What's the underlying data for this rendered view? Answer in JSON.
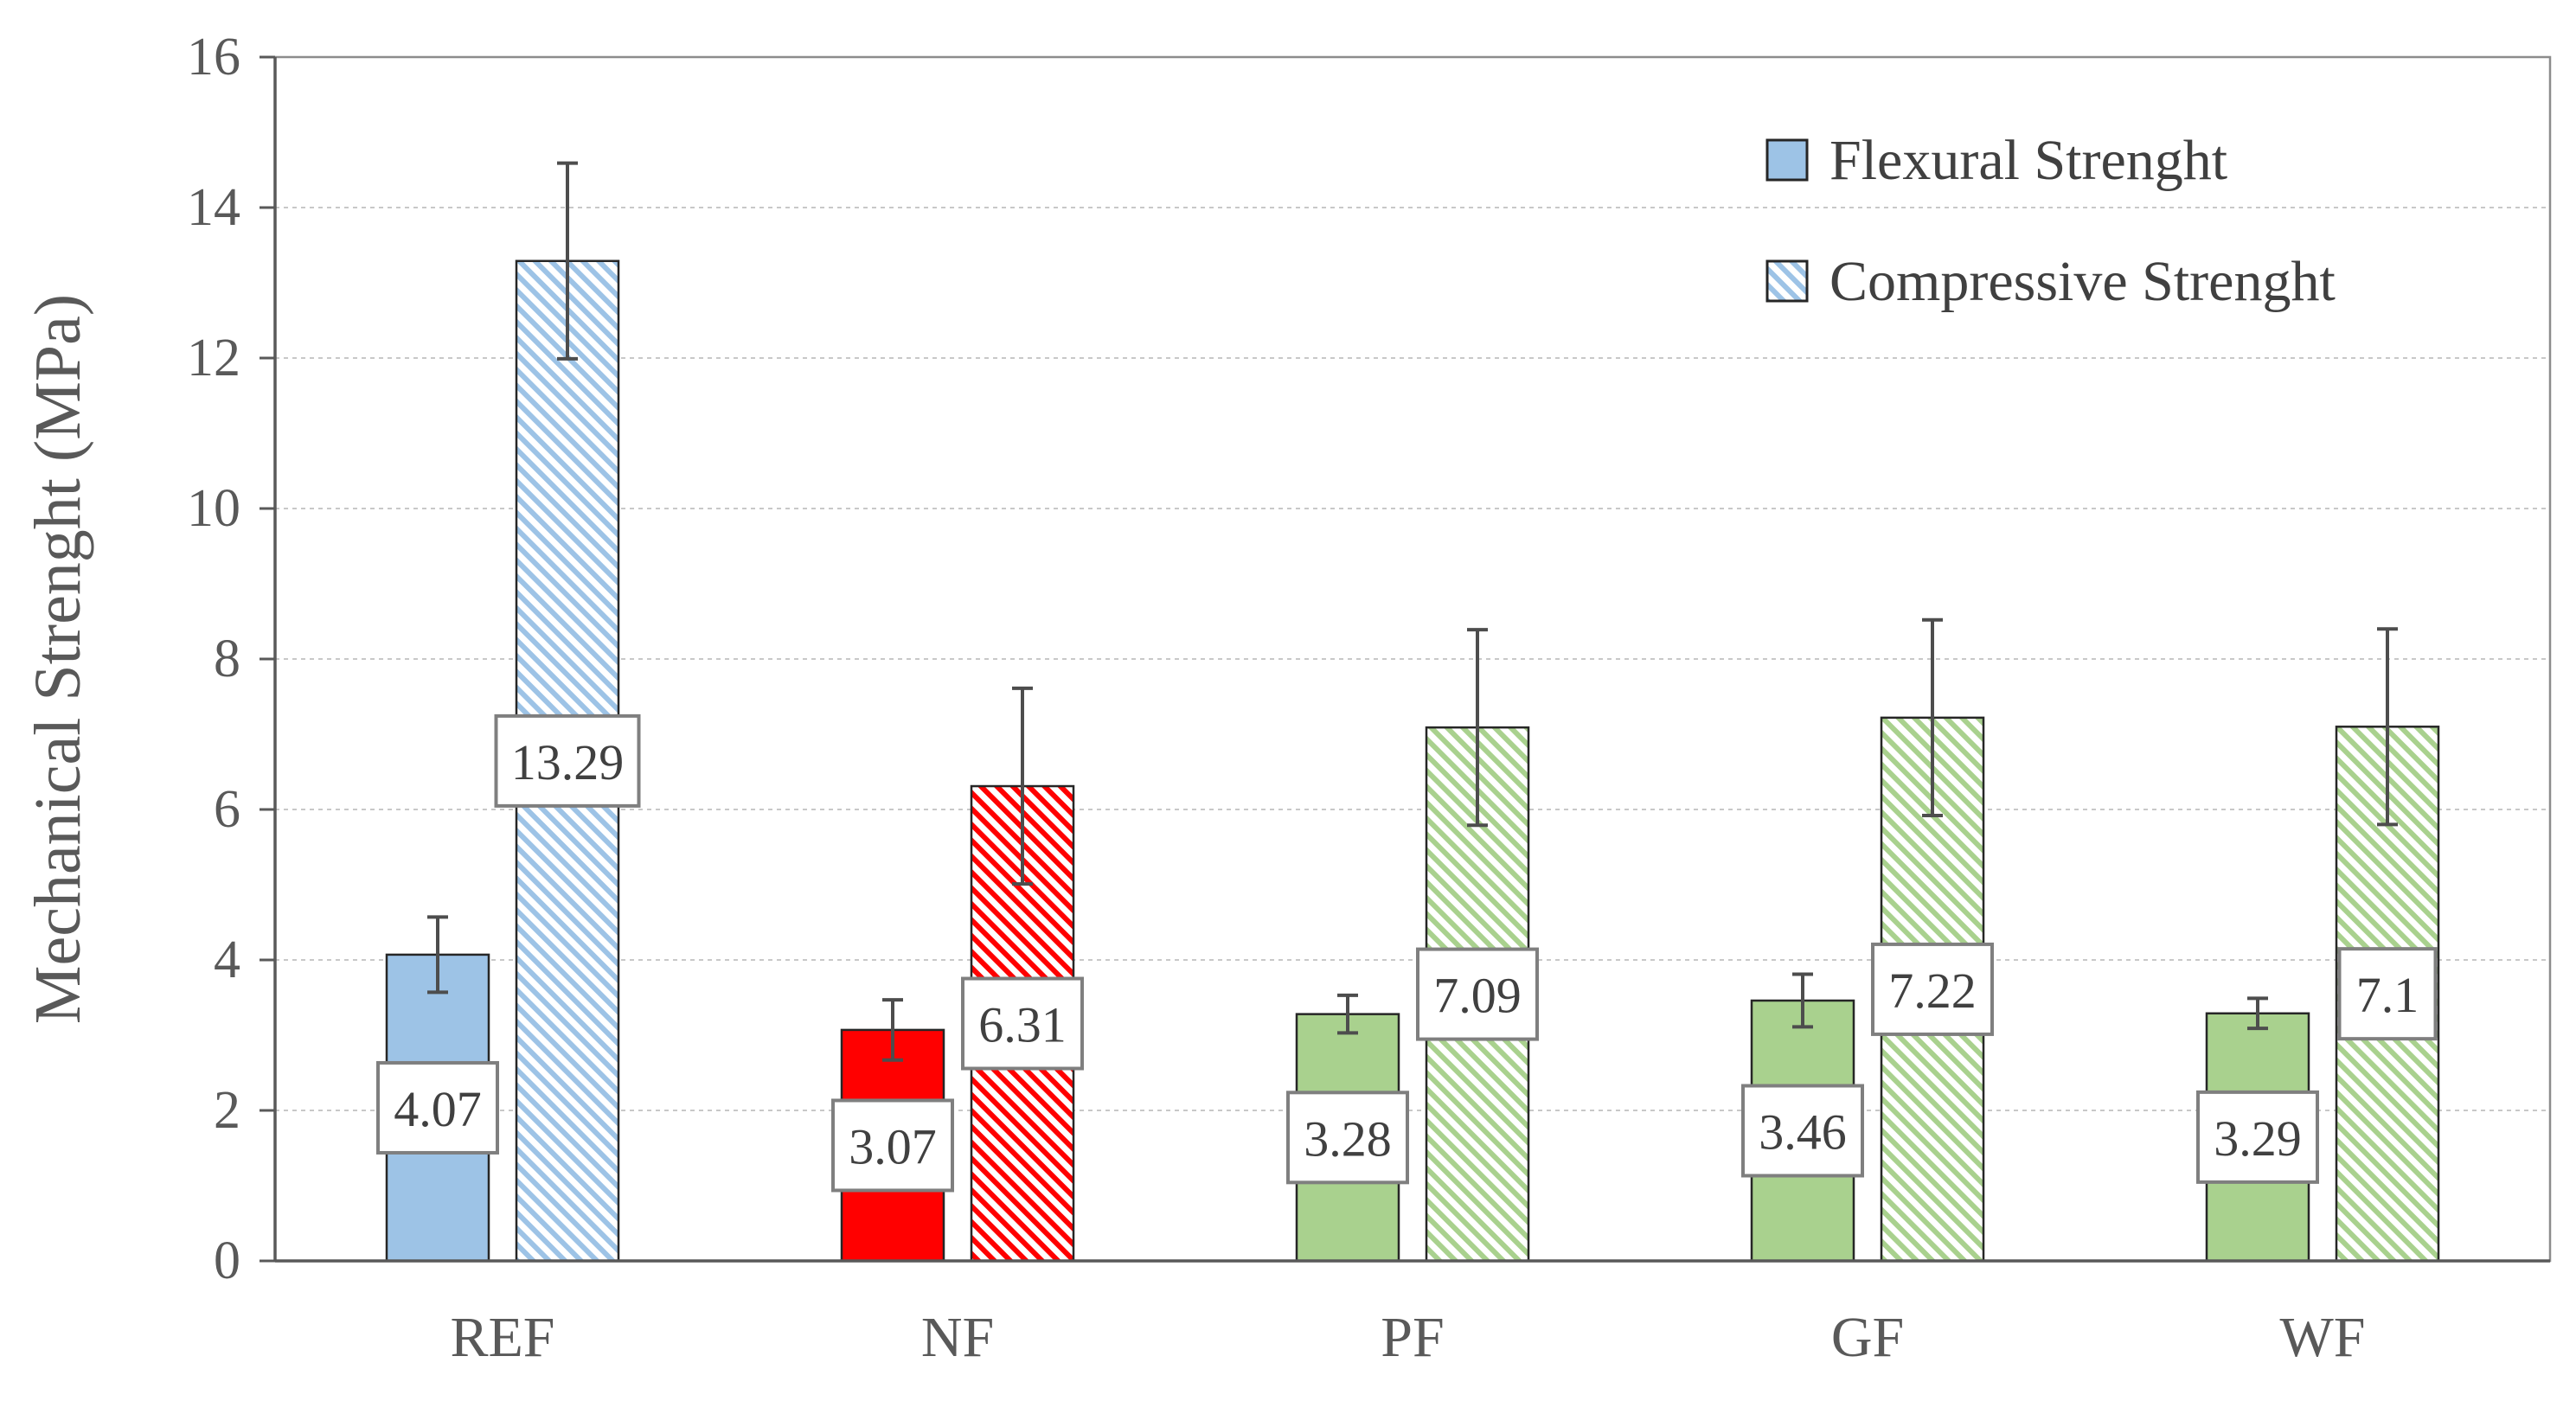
{
  "chart_data": {
    "type": "bar",
    "title": "",
    "xlabel": "",
    "ylabel": "Mechanical Strenght (MPa)",
    "ylim": [
      0,
      16
    ],
    "yticks": [
      "0",
      "2",
      "4",
      "6",
      "8",
      "10",
      "12",
      "14",
      "16"
    ],
    "grid": "horizontal dotted",
    "legend_position": "top-right",
    "categories": [
      "REF",
      "NF",
      "PF",
      "GF",
      "WF"
    ],
    "series": [
      {
        "name": "Flexural Strenght",
        "pattern": "solid",
        "values": [
          4.07,
          3.07,
          3.28,
          3.46,
          3.29
        ],
        "labels": [
          "4.07",
          "3.07",
          "3.28",
          "3.46",
          "3.29"
        ],
        "errors": [
          0.5,
          0.4,
          0.25,
          0.35,
          0.2
        ]
      },
      {
        "name": "Compressive Strenght",
        "pattern": "hatched",
        "values": [
          13.29,
          6.31,
          7.09,
          7.22,
          7.1
        ],
        "labels": [
          "13.29",
          "6.31",
          "7.09",
          "7.22",
          "7.1"
        ],
        "errors": [
          1.3,
          1.3,
          1.3,
          1.3,
          1.3
        ]
      }
    ],
    "category_colors": [
      "#9dc3e6",
      "#ff0000",
      "#a9d18e",
      "#a9d18e",
      "#a9d18e"
    ],
    "legend_color": "#9dc3e6"
  }
}
